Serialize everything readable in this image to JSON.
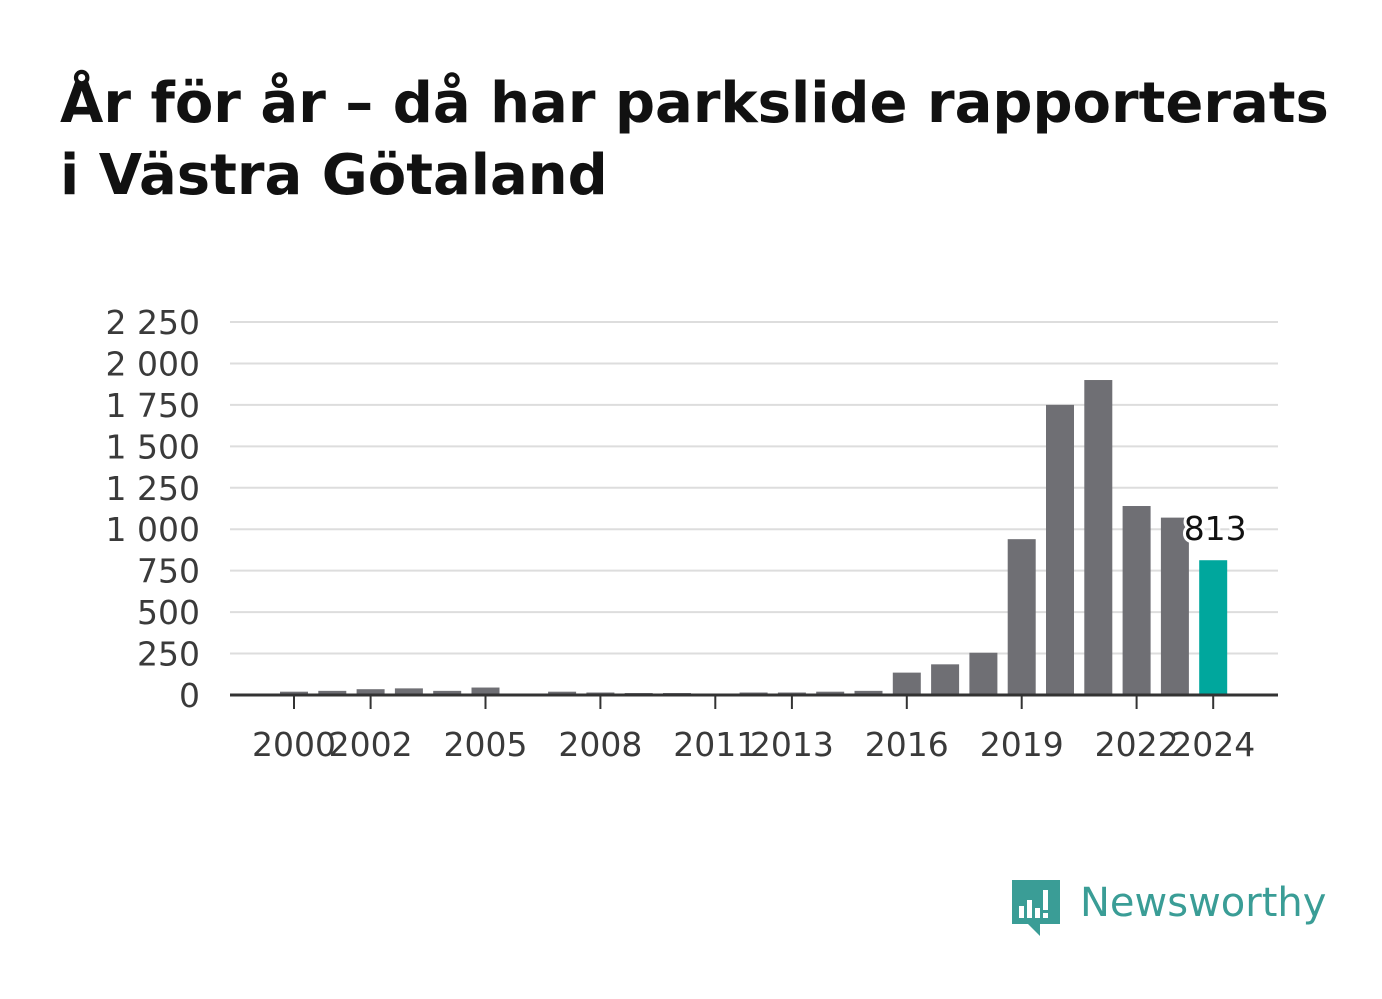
{
  "title": "År för år – då har parkslide rapporterats i Västra Götaland",
  "brand": {
    "name": "Newsworthy",
    "color": "#3a9d96"
  },
  "colors": {
    "bar": "#6f6f74",
    "highlight": "#00a79d",
    "grid": "#dddddd",
    "axis": "#333333"
  },
  "chart_data": {
    "type": "bar",
    "categories": [
      "2000",
      "2001",
      "2002",
      "2003",
      "2004",
      "2005",
      "2006",
      "2007",
      "2008",
      "2009",
      "2010",
      "2011",
      "2012",
      "2013",
      "2014",
      "2015",
      "2016",
      "2017",
      "2018",
      "2019",
      "2020",
      "2021",
      "2022",
      "2023",
      "2024"
    ],
    "values": [
      20,
      25,
      35,
      40,
      25,
      45,
      5,
      20,
      15,
      12,
      12,
      8,
      15,
      15,
      20,
      25,
      135,
      185,
      255,
      940,
      1750,
      1900,
      1140,
      1070,
      813
    ],
    "xtick_labels": [
      "2000",
      "2002",
      "2005",
      "2008",
      "2011",
      "2013",
      "2016",
      "2019",
      "2022",
      "2024"
    ],
    "yticks": [
      0,
      250,
      500,
      750,
      1000,
      1250,
      1500,
      1750,
      2000,
      2250
    ],
    "ytick_labels": [
      "0",
      "250",
      "500",
      "750",
      "1 000",
      "1 250",
      "1 500",
      "1 750",
      "2 000",
      "2 250"
    ],
    "ylim": [
      0,
      2250
    ],
    "highlight": {
      "category": "2024",
      "label": "813"
    },
    "grid": true,
    "xlabel": "",
    "ylabel": ""
  }
}
